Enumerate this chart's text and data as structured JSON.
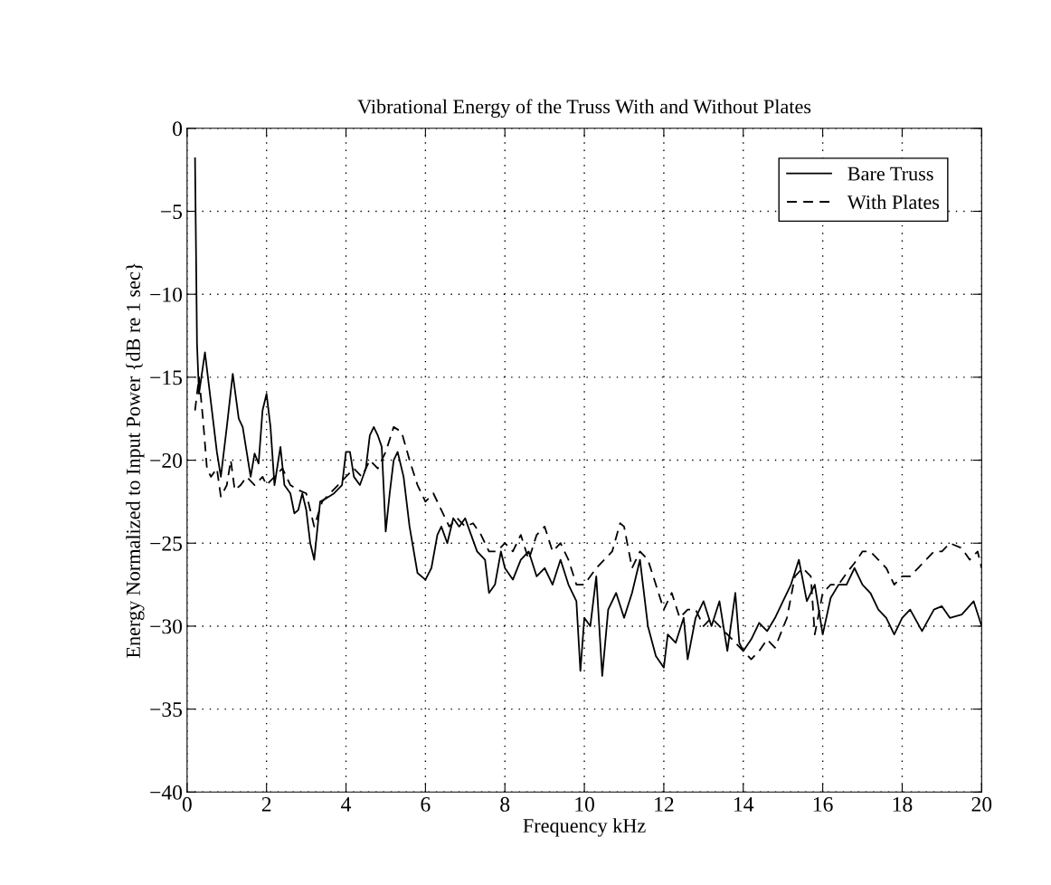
{
  "chart_data": {
    "type": "line",
    "title": "Vibrational Energy of the Truss With and Without Plates",
    "xlabel": "Frequency kHz",
    "ylabel": "Energy Normalized to Input Power {dB re 1 sec}",
    "xlim": [
      0,
      20
    ],
    "ylim": [
      -40,
      0
    ],
    "xticks": [
      0,
      2,
      4,
      6,
      8,
      10,
      12,
      14,
      16,
      18,
      20
    ],
    "yticks": [
      -40,
      -35,
      -30,
      -25,
      -20,
      -15,
      -10,
      -5,
      0
    ],
    "grid": true,
    "legend": "top right",
    "series": [
      {
        "name": "Bare Truss",
        "color": "#000000",
        "line_style": "solid",
        "x": [
          0.2,
          0.25,
          0.3,
          0.45,
          0.6,
          0.75,
          0.85,
          1.0,
          1.15,
          1.3,
          1.4,
          1.5,
          1.6,
          1.7,
          1.8,
          1.9,
          2.0,
          2.1,
          2.2,
          2.35,
          2.45,
          2.6,
          2.7,
          2.8,
          2.9,
          3.0,
          3.1,
          3.2,
          3.35,
          3.5,
          3.7,
          3.9,
          4.0,
          4.1,
          4.2,
          4.35,
          4.5,
          4.6,
          4.7,
          4.8,
          4.9,
          5.0,
          5.1,
          5.2,
          5.3,
          5.45,
          5.6,
          5.8,
          6.0,
          6.15,
          6.3,
          6.4,
          6.55,
          6.7,
          6.85,
          7.0,
          7.15,
          7.3,
          7.5,
          7.6,
          7.75,
          7.9,
          8.0,
          8.2,
          8.4,
          8.6,
          8.8,
          9.0,
          9.2,
          9.4,
          9.6,
          9.8,
          9.9,
          10.0,
          10.15,
          10.3,
          10.45,
          10.6,
          10.8,
          11.0,
          11.2,
          11.4,
          11.6,
          11.8,
          12.0,
          12.1,
          12.3,
          12.5,
          12.6,
          12.8,
          13.0,
          13.2,
          13.4,
          13.6,
          13.8,
          13.9,
          14.0,
          14.2,
          14.4,
          14.6,
          14.8,
          15.0,
          15.2,
          15.4,
          15.6,
          15.8,
          16.0,
          16.2,
          16.4,
          16.6,
          16.8,
          17.0,
          17.2,
          17.4,
          17.6,
          17.8,
          18.0,
          18.2,
          18.5,
          18.8,
          19.0,
          19.2,
          19.5,
          19.8,
          20.0
        ],
        "values": [
          -1.8,
          -13,
          -16,
          -13.5,
          -16.5,
          -19.5,
          -21,
          -18,
          -14.8,
          -17.5,
          -18,
          -19.5,
          -21,
          -19.6,
          -20.2,
          -17,
          -16,
          -18,
          -21.5,
          -19.2,
          -21.5,
          -22,
          -23.2,
          -23,
          -22,
          -23,
          -25,
          -26,
          -22.5,
          -22.3,
          -22,
          -21.5,
          -19.5,
          -19.5,
          -21,
          -21.5,
          -20.5,
          -18.5,
          -18,
          -18.5,
          -19.2,
          -24.3,
          -22,
          -20,
          -19.5,
          -21,
          -24,
          -26.8,
          -27.2,
          -26.5,
          -24.5,
          -24,
          -25,
          -23.5,
          -24,
          -23.5,
          -24.5,
          -25.5,
          -26,
          -28,
          -27.5,
          -25.5,
          -26.5,
          -27.2,
          -26,
          -25.5,
          -27,
          -26.5,
          -27.5,
          -26,
          -27.5,
          -28.5,
          -32.7,
          -29.5,
          -30,
          -27,
          -33,
          -29,
          -28,
          -29.5,
          -28,
          -26,
          -30,
          -31.8,
          -32.5,
          -30.5,
          -31,
          -29.5,
          -32,
          -29.5,
          -28.5,
          -30,
          -28.5,
          -31.5,
          -28,
          -31,
          -31.5,
          -30.8,
          -29.8,
          -30.3,
          -29.5,
          -28.5,
          -27.5,
          -26,
          -28.5,
          -27.5,
          -30.5,
          -28.3,
          -27.5,
          -27.5,
          -26.5,
          -27.5,
          -28,
          -29,
          -29.5,
          -30.5,
          -29.5,
          -29,
          -30.3,
          -29,
          -28.8,
          -29.5,
          -29.3,
          -28.5,
          -30
        ]
      },
      {
        "name": "With Plates",
        "color": "#000000",
        "line_style": "dashed",
        "x": [
          0.2,
          0.3,
          0.4,
          0.5,
          0.6,
          0.75,
          0.85,
          1.0,
          1.1,
          1.2,
          1.35,
          1.5,
          1.7,
          1.9,
          2.0,
          2.2,
          2.4,
          2.6,
          2.8,
          3.0,
          3.2,
          3.4,
          3.6,
          3.8,
          4.0,
          4.2,
          4.4,
          4.6,
          4.8,
          5.0,
          5.2,
          5.4,
          5.6,
          5.8,
          6.0,
          6.2,
          6.4,
          6.6,
          6.8,
          7.0,
          7.2,
          7.4,
          7.6,
          7.8,
          8.0,
          8.2,
          8.4,
          8.6,
          8.8,
          9.0,
          9.2,
          9.4,
          9.6,
          9.8,
          10.0,
          10.3,
          10.5,
          10.7,
          10.9,
          11.0,
          11.2,
          11.4,
          11.6,
          11.8,
          12.0,
          12.2,
          12.4,
          12.6,
          12.8,
          13.0,
          13.2,
          13.4,
          13.6,
          13.8,
          14.0,
          14.2,
          14.4,
          14.6,
          14.8,
          15.1,
          15.3,
          15.5,
          15.7,
          15.8,
          16.0,
          16.2,
          16.4,
          16.6,
          16.8,
          17.0,
          17.2,
          17.4,
          17.6,
          17.8,
          18.0,
          18.2,
          18.4,
          18.6,
          18.8,
          19.0,
          19.2,
          19.5,
          19.7,
          19.9,
          20.0
        ],
        "values": [
          -17,
          -15,
          -17.5,
          -20.5,
          -21,
          -20.5,
          -22.2,
          -21.5,
          -20,
          -21.8,
          -21.5,
          -21,
          -21.5,
          -21,
          -21.5,
          -21,
          -20.5,
          -21.5,
          -21.8,
          -22,
          -24,
          -22.5,
          -22,
          -21.5,
          -21,
          -20.5,
          -21,
          -20,
          -20.5,
          -19.5,
          -18,
          -18.3,
          -20,
          -21.5,
          -22.5,
          -22,
          -23,
          -24,
          -23.5,
          -24,
          -23.8,
          -24.5,
          -25.5,
          -25.5,
          -25,
          -25.5,
          -24.5,
          -26,
          -24.5,
          -24,
          -25.5,
          -25,
          -26,
          -27.5,
          -27.5,
          -26.5,
          -26,
          -25.5,
          -23.8,
          -24,
          -26.5,
          -25.5,
          -26,
          -27.5,
          -29,
          -28,
          -29.5,
          -29,
          -29,
          -30,
          -29.5,
          -30,
          -30.5,
          -31,
          -31.5,
          -32,
          -31.5,
          -30.8,
          -31.3,
          -29.5,
          -27,
          -26.5,
          -27,
          -30.5,
          -28,
          -27.5,
          -27.5,
          -26.8,
          -26.2,
          -25.5,
          -25.5,
          -26,
          -26.5,
          -27.5,
          -27,
          -27,
          -26.5,
          -26,
          -25.5,
          -25.5,
          -25,
          -25.3,
          -26,
          -25.5,
          -26.5
        ]
      }
    ]
  }
}
